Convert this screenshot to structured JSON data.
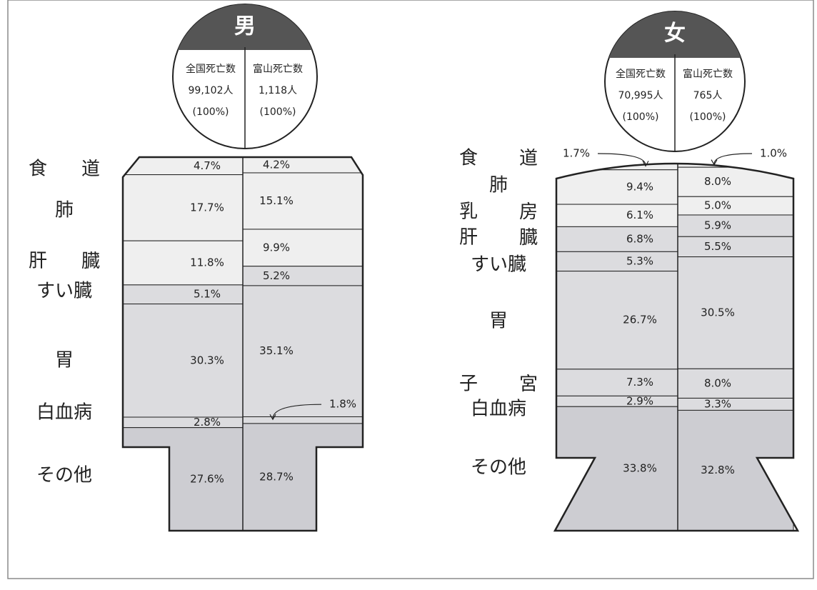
{
  "chart_data": [
    {
      "type": "bar",
      "subtype": "stacked-silhouette",
      "figure": "男",
      "header": {
        "columns": [
          "全国死亡数",
          "富山死亡数"
        ],
        "totals": [
          "99,102人",
          "1,118人"
        ],
        "totals_pct": [
          "(100%)",
          "(100%)"
        ]
      },
      "categories": [
        "食 道",
        "肺",
        "肝 臓",
        "すい臓",
        "胃",
        "白血病",
        "その他"
      ],
      "series": [
        {
          "values": [
            4.7,
            17.7,
            11.8,
            5.1,
            30.3,
            2.8,
            27.6
          ],
          "labels": [
            "4.7%",
            "17.7%",
            "11.8%",
            "5.1%",
            "30.3%",
            "2.8%",
            "27.6%"
          ]
        },
        {
          "values": [
            4.2,
            15.1,
            9.9,
            5.2,
            35.1,
            1.8,
            28.7
          ],
          "labels": [
            "4.2%",
            "15.1%",
            "9.9%",
            "5.2%",
            "35.1%",
            "1.8%",
            "28.7%"
          ]
        }
      ],
      "ylim": [
        0,
        100
      ]
    },
    {
      "type": "bar",
      "subtype": "stacked-silhouette",
      "figure": "女",
      "header": {
        "columns": [
          "全国死亡数",
          "富山死亡数"
        ],
        "totals": [
          "70,995人",
          "765人"
        ],
        "totals_pct": [
          "(100%)",
          "(100%)"
        ]
      },
      "categories": [
        "食 道",
        "肺",
        "乳 房",
        "肝 臓",
        "すい臓",
        "胃",
        "子 宮",
        "白血病",
        "その他"
      ],
      "series": [
        {
          "values": [
            1.7,
            9.4,
            6.1,
            6.8,
            5.3,
            26.7,
            7.3,
            2.9,
            33.8
          ],
          "labels": [
            "1.7%",
            "9.4%",
            "6.1%",
            "6.8%",
            "5.3%",
            "26.7%",
            "7.3%",
            "2.9%",
            "33.8%"
          ]
        },
        {
          "values": [
            1.0,
            8.0,
            5.0,
            5.9,
            5.5,
            30.5,
            8.0,
            3.3,
            32.8
          ],
          "labels": [
            "1.0%",
            "8.0%",
            "5.0%",
            "5.9%",
            "5.5%",
            "30.5%",
            "8.0%",
            "3.3%",
            "32.8%"
          ]
        }
      ],
      "ylim": [
        0,
        100
      ]
    }
  ],
  "colors": {
    "light": "#efefef",
    "mid": "#dcdcdf",
    "dark": "#cdcdd2",
    "head_fill": "#555555",
    "ink": "#222222"
  }
}
